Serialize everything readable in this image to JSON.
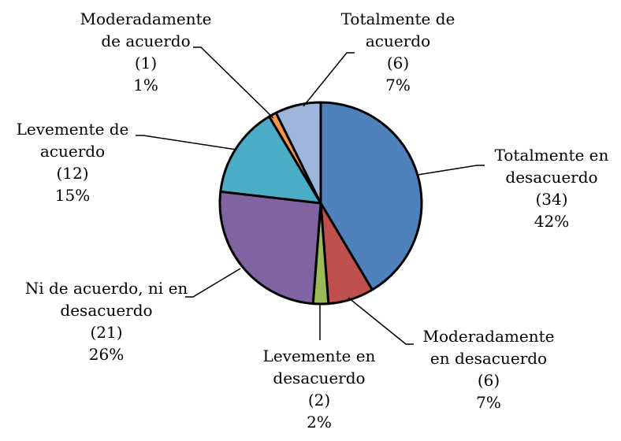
{
  "chart_data": {
    "type": "pie",
    "categories": [
      "Totalmente en desacuerdo",
      "Moderadamente en desacuerdo",
      "Levemente en desacuerdo",
      "Ni de acuerdo, ni en desacuerdo",
      "Levemente de acuerdo",
      "Moderadamente de acuerdo",
      "Totalmente de acuerdo"
    ],
    "values": [
      34,
      6,
      2,
      21,
      12,
      1,
      6
    ],
    "value_labels": [
      "(34)",
      "(6)",
      "(2)",
      "(21)",
      "(12)",
      "(1)",
      "(6)"
    ],
    "percentages": [
      42,
      7,
      2,
      26,
      15,
      1,
      7
    ],
    "percentage_labels": [
      "42%",
      "7%",
      "2%",
      "26%",
      "15%",
      "1%",
      "7%"
    ],
    "colors": [
      "#4f81bd",
      "#c0504d",
      "#9bbb59",
      "#8064a2",
      "#4bacc6",
      "#f79646",
      "#9fb6dc"
    ]
  }
}
